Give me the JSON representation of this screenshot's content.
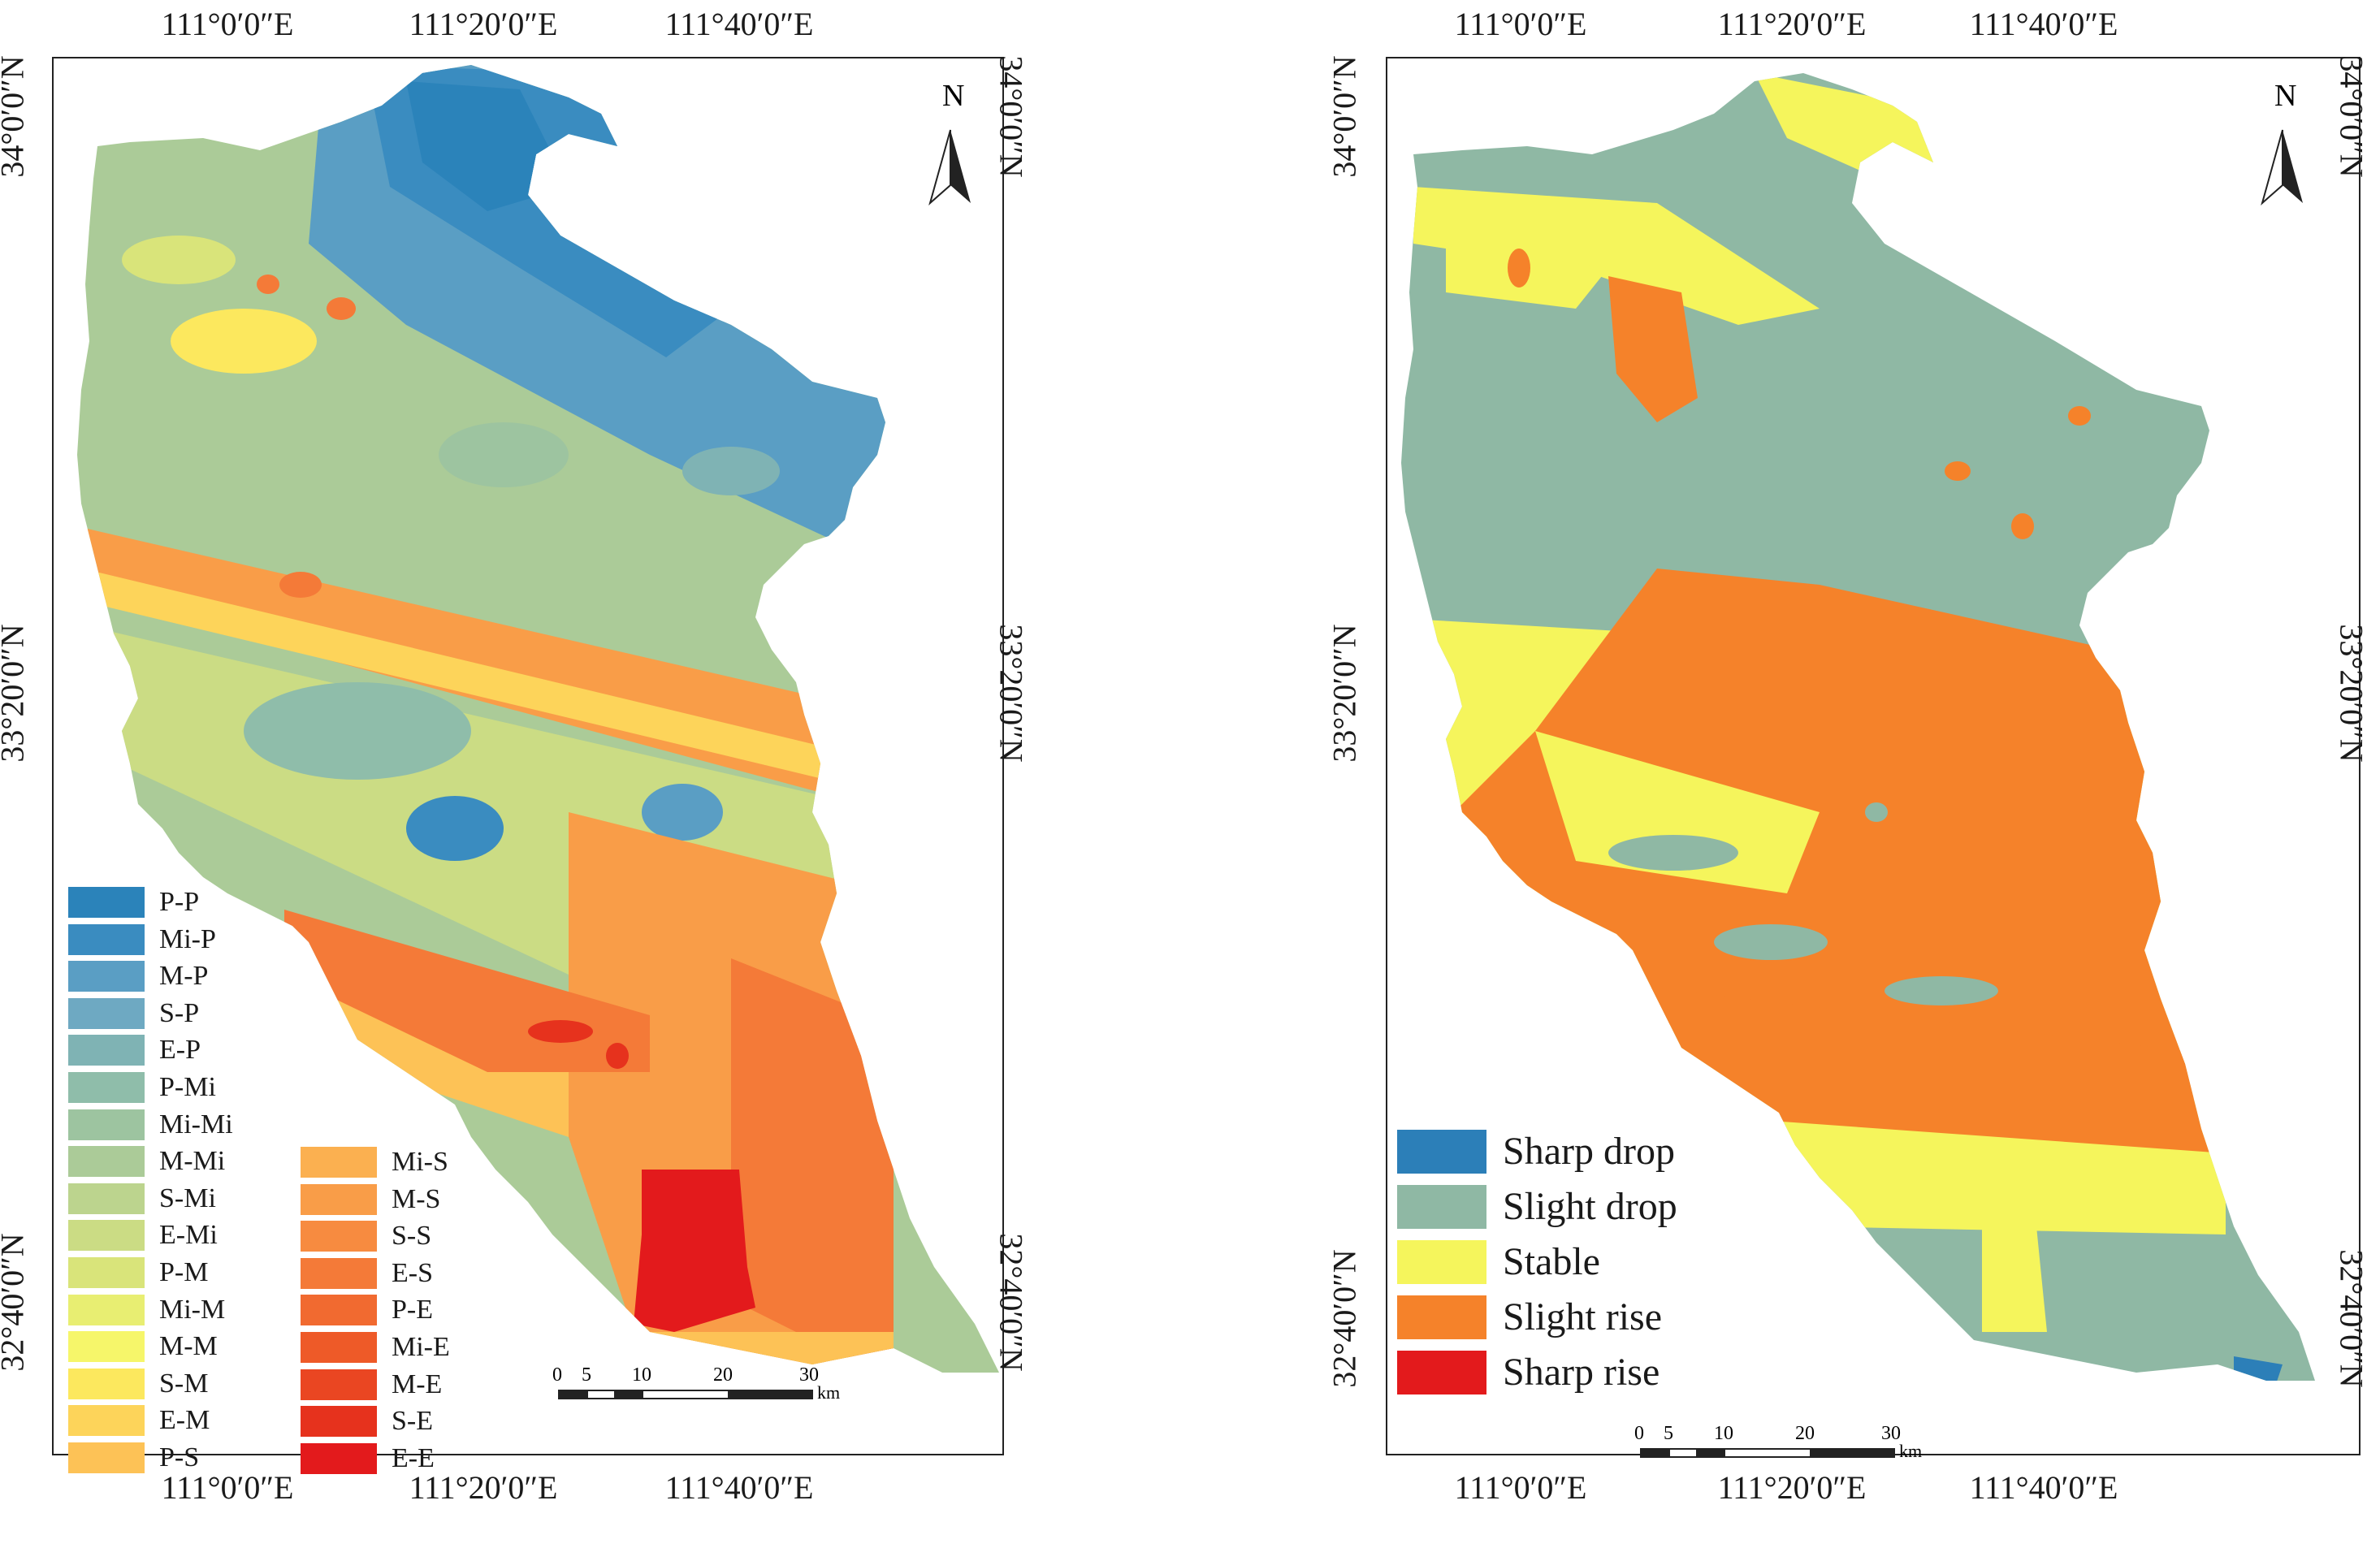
{
  "left_panel": {
    "lon_ticks": [
      "111°0′0″E",
      "111°20′0″E",
      "111°40′0″E"
    ],
    "lat_ticks": [
      "34°0′0″N",
      "33°20′0″N",
      "32°40′0″N"
    ],
    "north_label": "N",
    "scale_labels": [
      "0",
      "5",
      "10",
      "20",
      "30"
    ],
    "scale_unit": "km",
    "legend_col1": [
      {
        "label": "P-P",
        "color": "#2b83ba"
      },
      {
        "label": "Mi-P",
        "color": "#3a8cc0"
      },
      {
        "label": "M-P",
        "color": "#5a9ec4"
      },
      {
        "label": "S-P",
        "color": "#6ea9c2"
      },
      {
        "label": "E-P",
        "color": "#7fb3b4"
      },
      {
        "label": "P-Mi",
        "color": "#8fbdaa"
      },
      {
        "label": "Mi-Mi",
        "color": "#9dc4a0"
      },
      {
        "label": "M-Mi",
        "color": "#abcb98"
      },
      {
        "label": "S-Mi",
        "color": "#bcd48e"
      },
      {
        "label": "E-Mi",
        "color": "#cbdc84"
      },
      {
        "label": "P-M",
        "color": "#d9e47a"
      },
      {
        "label": "Mi-M",
        "color": "#e8ee72"
      },
      {
        "label": "M-M",
        "color": "#f6f66a"
      },
      {
        "label": "S-M",
        "color": "#fce85e"
      },
      {
        "label": "E-M",
        "color": "#fdd45a"
      },
      {
        "label": "P-S",
        "color": "#fdc256"
      }
    ],
    "legend_col2": [
      {
        "label": "Mi-S",
        "color": "#fbb050"
      },
      {
        "label": "M-S",
        "color": "#f99d48"
      },
      {
        "label": "S-S",
        "color": "#f78b40"
      },
      {
        "label": "E-S",
        "color": "#f47a38"
      },
      {
        "label": "P-E",
        "color": "#f16a30"
      },
      {
        "label": "Mi-E",
        "color": "#ee5a28"
      },
      {
        "label": "M-E",
        "color": "#ea4622"
      },
      {
        "label": "S-E",
        "color": "#e6321d"
      },
      {
        "label": "E-E",
        "color": "#e31a1c"
      }
    ]
  },
  "right_panel": {
    "lon_ticks": [
      "111°0′0″E",
      "111°20′0″E",
      "111°40′0″E"
    ],
    "lat_ticks": [
      "34°0′0″N",
      "33°20′0″N",
      "32°40′0″N"
    ],
    "north_label": "N",
    "scale_labels": [
      "0",
      "5",
      "10",
      "20",
      "30"
    ],
    "scale_unit": "km",
    "legend": [
      {
        "label": "Sharp drop",
        "color": "#2c7fb8"
      },
      {
        "label": "Slight drop",
        "color": "#8fb8a4"
      },
      {
        "label": "Stable",
        "color": "#f5f55c"
      },
      {
        "label": "Slight rise",
        "color": "#f5822a"
      },
      {
        "label": "Sharp rise",
        "color": "#e31a1c"
      }
    ]
  }
}
